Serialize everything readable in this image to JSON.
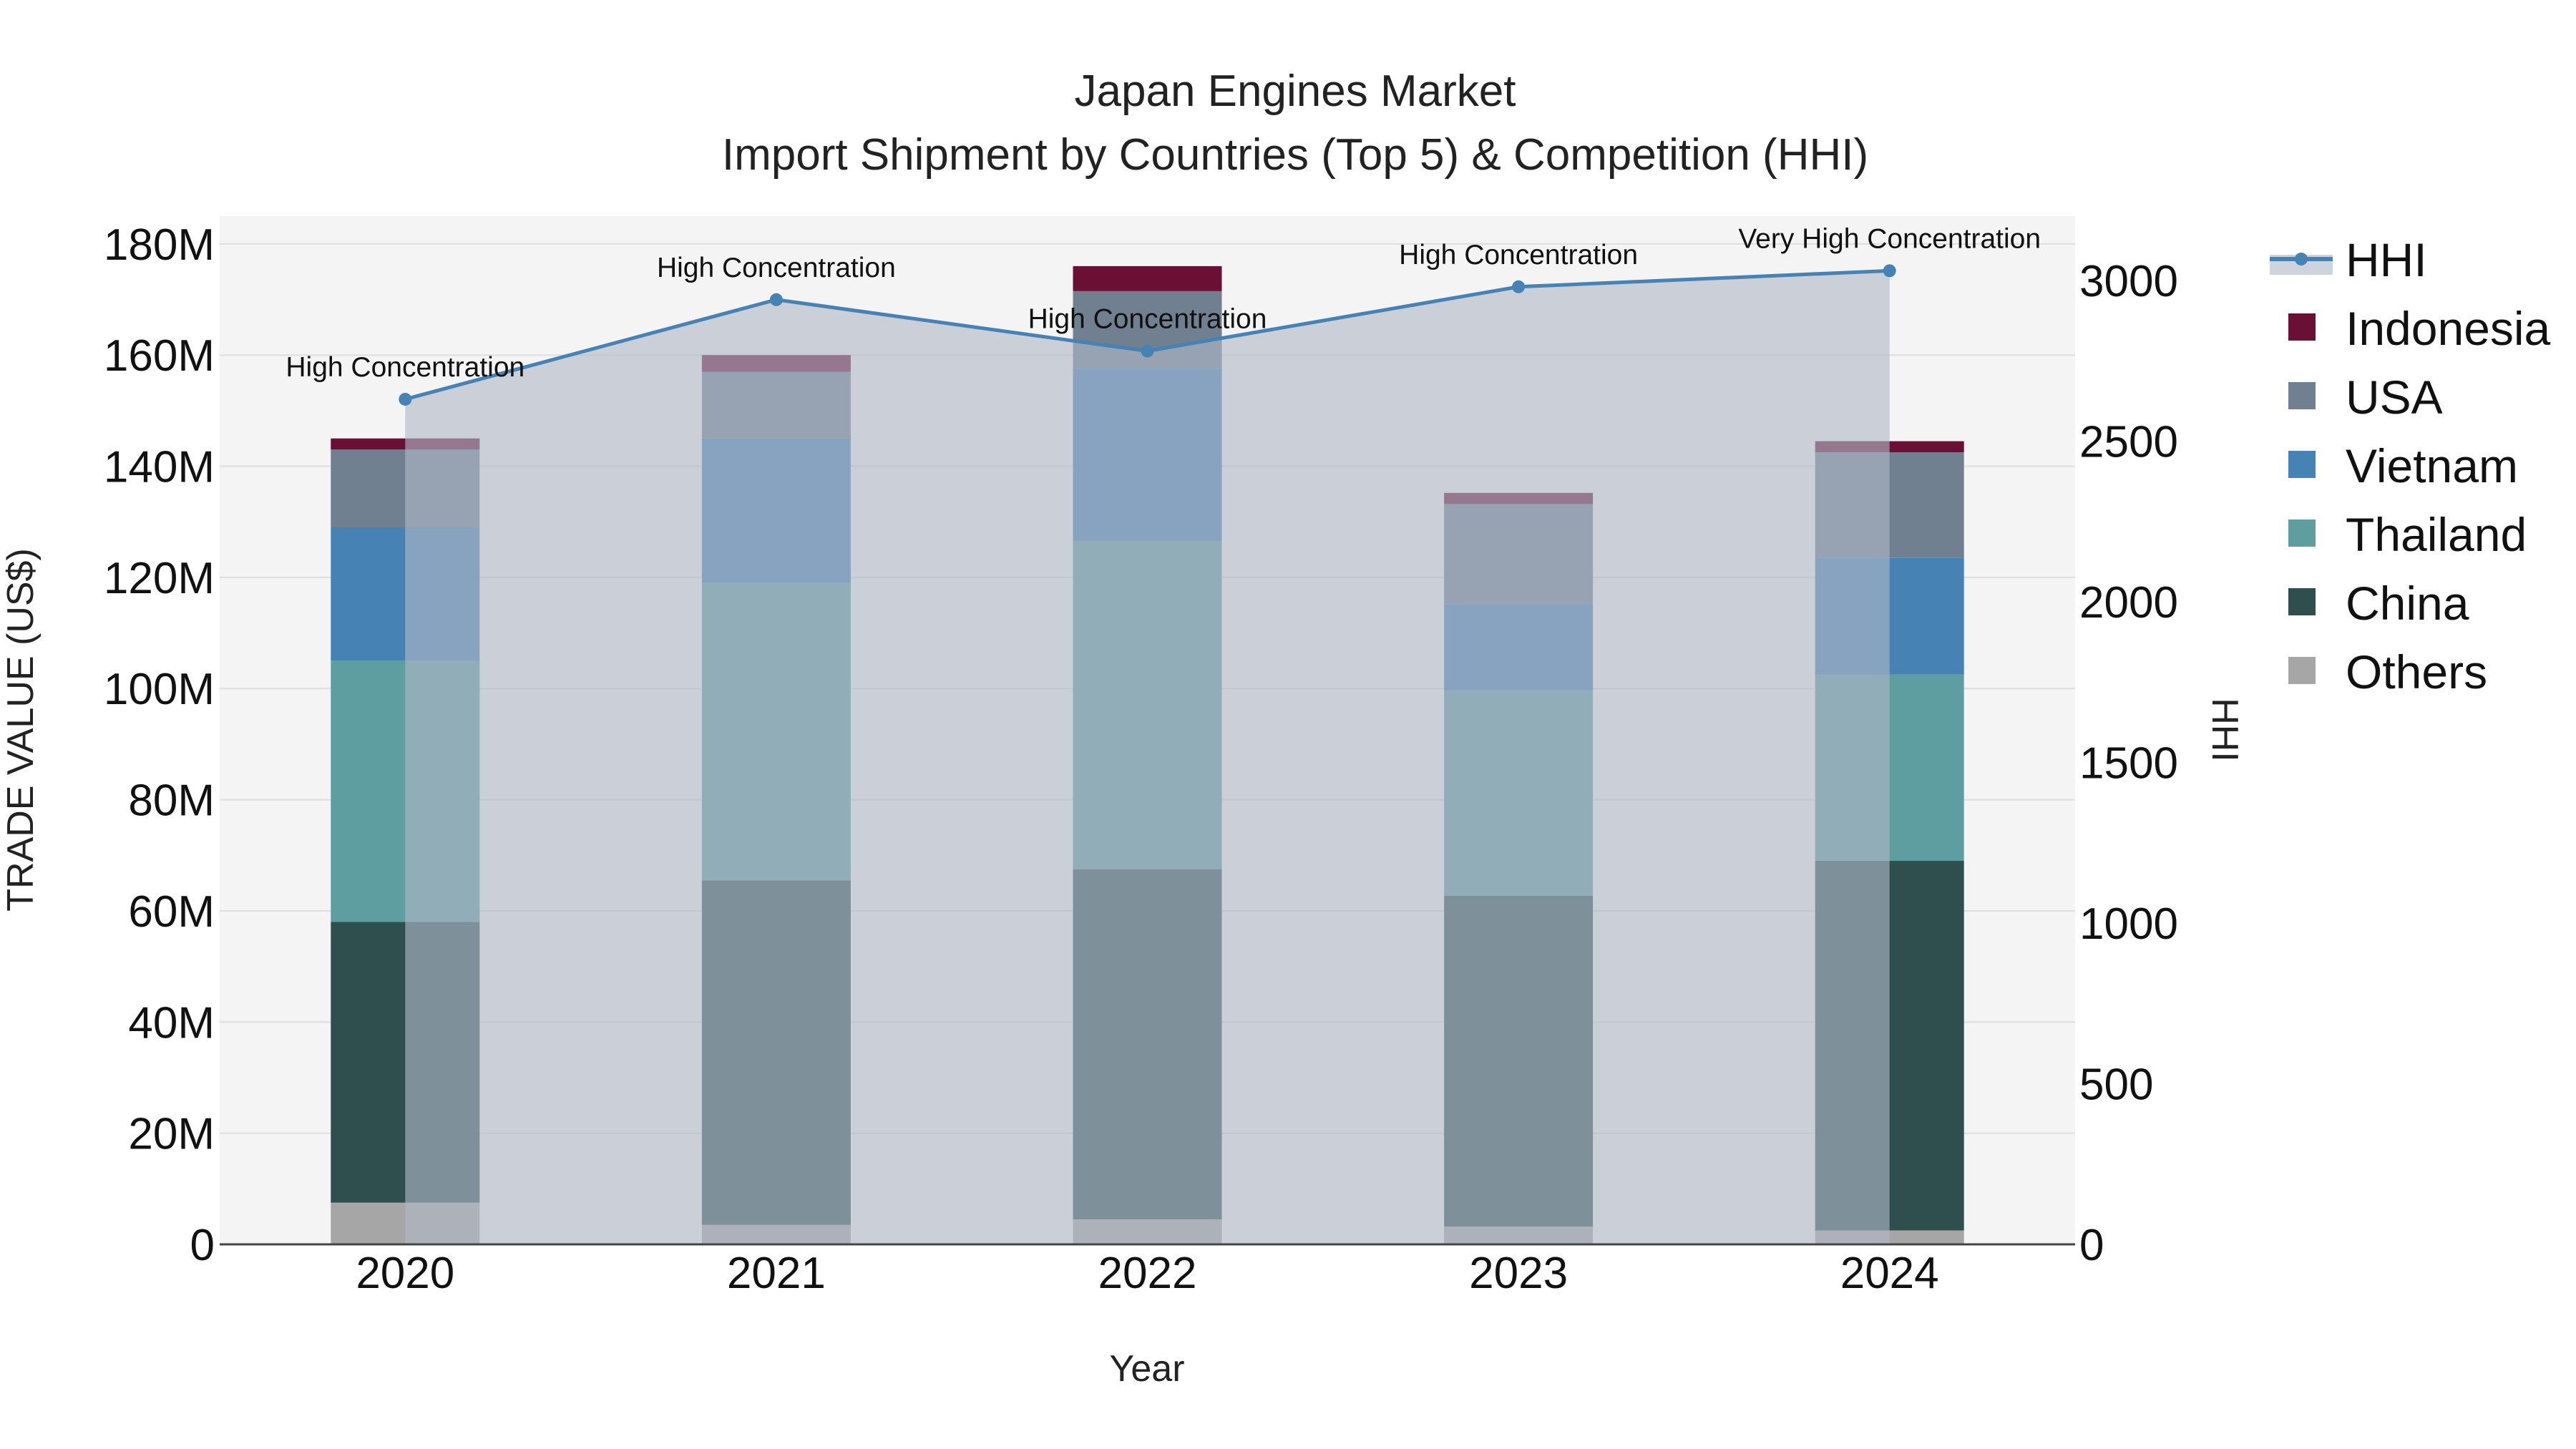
{
  "chart_data": {
    "type": "bar",
    "title": "Japan  Engines Market",
    "subtitle": "Import Shipment by Countries (Top 5) & Competition (HHI)",
    "xlabel": "Year",
    "ylabel": "TRADE VALUE (US$)",
    "y2label": "HHI",
    "categories": [
      "2020",
      "2021",
      "2022",
      "2023",
      "2024"
    ],
    "ylim": [
      0,
      185000000
    ],
    "y2lim": [
      0,
      3200
    ],
    "yticks": [
      {
        "value": 0,
        "label": "0"
      },
      {
        "value": 20000000,
        "label": "20M"
      },
      {
        "value": 40000000,
        "label": "40M"
      },
      {
        "value": 60000000,
        "label": "60M"
      },
      {
        "value": 80000000,
        "label": "80M"
      },
      {
        "value": 100000000,
        "label": "100M"
      },
      {
        "value": 120000000,
        "label": "120M"
      },
      {
        "value": 140000000,
        "label": "140M"
      },
      {
        "value": 160000000,
        "label": "160M"
      },
      {
        "value": 180000000,
        "label": "180M"
      }
    ],
    "y2ticks": [
      {
        "value": 0,
        "label": "0"
      },
      {
        "value": 500,
        "label": "500"
      },
      {
        "value": 1000,
        "label": "1000"
      },
      {
        "value": 1500,
        "label": "1500"
      },
      {
        "value": 2000,
        "label": "2000"
      },
      {
        "value": 2500,
        "label": "2500"
      },
      {
        "value": 3000,
        "label": "3000"
      }
    ],
    "series": [
      {
        "name": "Others",
        "color": "#a6a6a6",
        "values": [
          7500000,
          3500000,
          4500000,
          3200000,
          2500000
        ]
      },
      {
        "name": "China",
        "color": "#2f4f4f",
        "values": [
          50500000,
          62000000,
          63000000,
          59500000,
          66500000
        ]
      },
      {
        "name": "Thailand",
        "color": "#5f9ea0",
        "values": [
          47000000,
          53500000,
          59000000,
          37000000,
          33500000
        ]
      },
      {
        "name": "Vietnam",
        "color": "#4682b4",
        "values": [
          24000000,
          26000000,
          31000000,
          15500000,
          21000000
        ]
      },
      {
        "name": "USA",
        "color": "#708090",
        "values": [
          14000000,
          12000000,
          14000000,
          18000000,
          19000000
        ]
      },
      {
        "name": "Indonesia",
        "color": "#6a1035",
        "values": [
          2000000,
          3000000,
          4500000,
          2000000,
          2000000
        ]
      }
    ],
    "hhi": {
      "name": "HHI",
      "color": "#4682b4",
      "values": [
        2630,
        2940,
        2780,
        2980,
        3030
      ],
      "labels": [
        "High Concentration",
        "High Concentration",
        "High Concentration",
        "High Concentration",
        "Very High Concentration"
      ]
    },
    "legend": {
      "position": "right",
      "items": [
        "HHI",
        "Indonesia",
        "USA",
        "Vietnam",
        "Thailand",
        "China",
        "Others"
      ]
    }
  }
}
